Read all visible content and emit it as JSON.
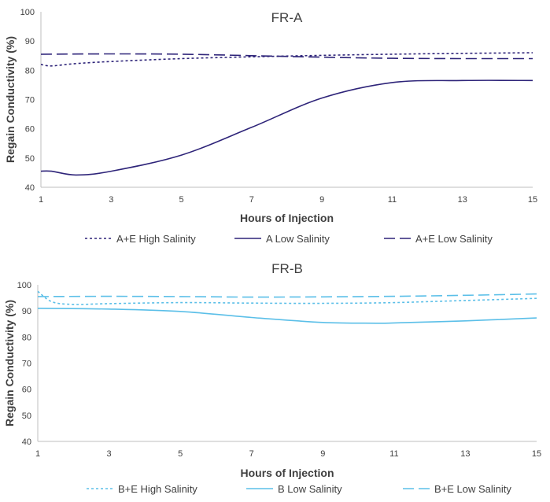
{
  "chart_data": [
    {
      "type": "line",
      "title": "FR-A",
      "xlabel": "Hours of Injection",
      "ylabel": "Regain Conductivity (%)",
      "xlim": [
        1,
        15
      ],
      "ylim": [
        40,
        100
      ],
      "xticks": [
        1,
        3,
        5,
        7,
        9,
        11,
        13,
        15
      ],
      "yticks": [
        40,
        50,
        60,
        70,
        80,
        90,
        100
      ],
      "grid": false,
      "legend_position": "bottom",
      "series": [
        {
          "name": "A+E High Salinity",
          "color": "#2e2479",
          "dash": "3,3",
          "x": [
            1,
            1.3,
            2,
            3,
            5,
            7,
            9,
            11,
            13,
            15
          ],
          "y": [
            82,
            81.5,
            82.3,
            83,
            84,
            84.6,
            85.1,
            85.5,
            85.8,
            86
          ]
        },
        {
          "name": "A Low Salinity",
          "color": "#2e2479",
          "dash": "",
          "x": [
            1,
            1.3,
            2,
            3,
            5,
            7,
            9,
            11,
            13,
            15
          ],
          "y": [
            45.5,
            45.5,
            44.2,
            45.5,
            51,
            60.5,
            70.5,
            75.8,
            76.5,
            76.5
          ]
        },
        {
          "name": "A+E Low Salinity",
          "color": "#2e2479",
          "dash": "14,6",
          "x": [
            1,
            3,
            5,
            7,
            9,
            11,
            13,
            15
          ],
          "y": [
            85.5,
            85.6,
            85.5,
            85.0,
            84.5,
            84.1,
            84.0,
            84.0
          ]
        }
      ]
    },
    {
      "type": "line",
      "title": "FR-B",
      "xlabel": "Hours of Injection",
      "ylabel": "Regain Conductivity (%)",
      "xlim": [
        1,
        15
      ],
      "ylim": [
        40,
        100
      ],
      "xticks": [
        1,
        3,
        5,
        7,
        9,
        11,
        13,
        15
      ],
      "yticks": [
        40,
        50,
        60,
        70,
        80,
        90,
        100
      ],
      "grid": false,
      "legend_position": "bottom",
      "series": [
        {
          "name": "B+E High Salinity",
          "color": "#5bbfe8",
          "dash": "3,3",
          "x": [
            1,
            1.4,
            2,
            3,
            5,
            7,
            9,
            11,
            13,
            15
          ],
          "y": [
            97.5,
            93.5,
            92.5,
            92.8,
            93.2,
            93.0,
            92.9,
            93.2,
            94.0,
            94.8
          ]
        },
        {
          "name": "B Low Salinity",
          "color": "#5bbfe8",
          "dash": "",
          "x": [
            1,
            3,
            5,
            7,
            9,
            10.5,
            11,
            13,
            15
          ],
          "y": [
            91,
            90.7,
            89.8,
            87.5,
            85.6,
            85.3,
            85.4,
            86.2,
            87.3
          ]
        },
        {
          "name": "B+E Low Salinity",
          "color": "#5bbfe8",
          "dash": "14,6",
          "x": [
            1,
            3,
            5,
            7,
            9,
            11,
            13,
            15
          ],
          "y": [
            95.5,
            95.6,
            95.5,
            95.3,
            95.4,
            95.6,
            96.0,
            96.5
          ]
        }
      ]
    }
  ]
}
